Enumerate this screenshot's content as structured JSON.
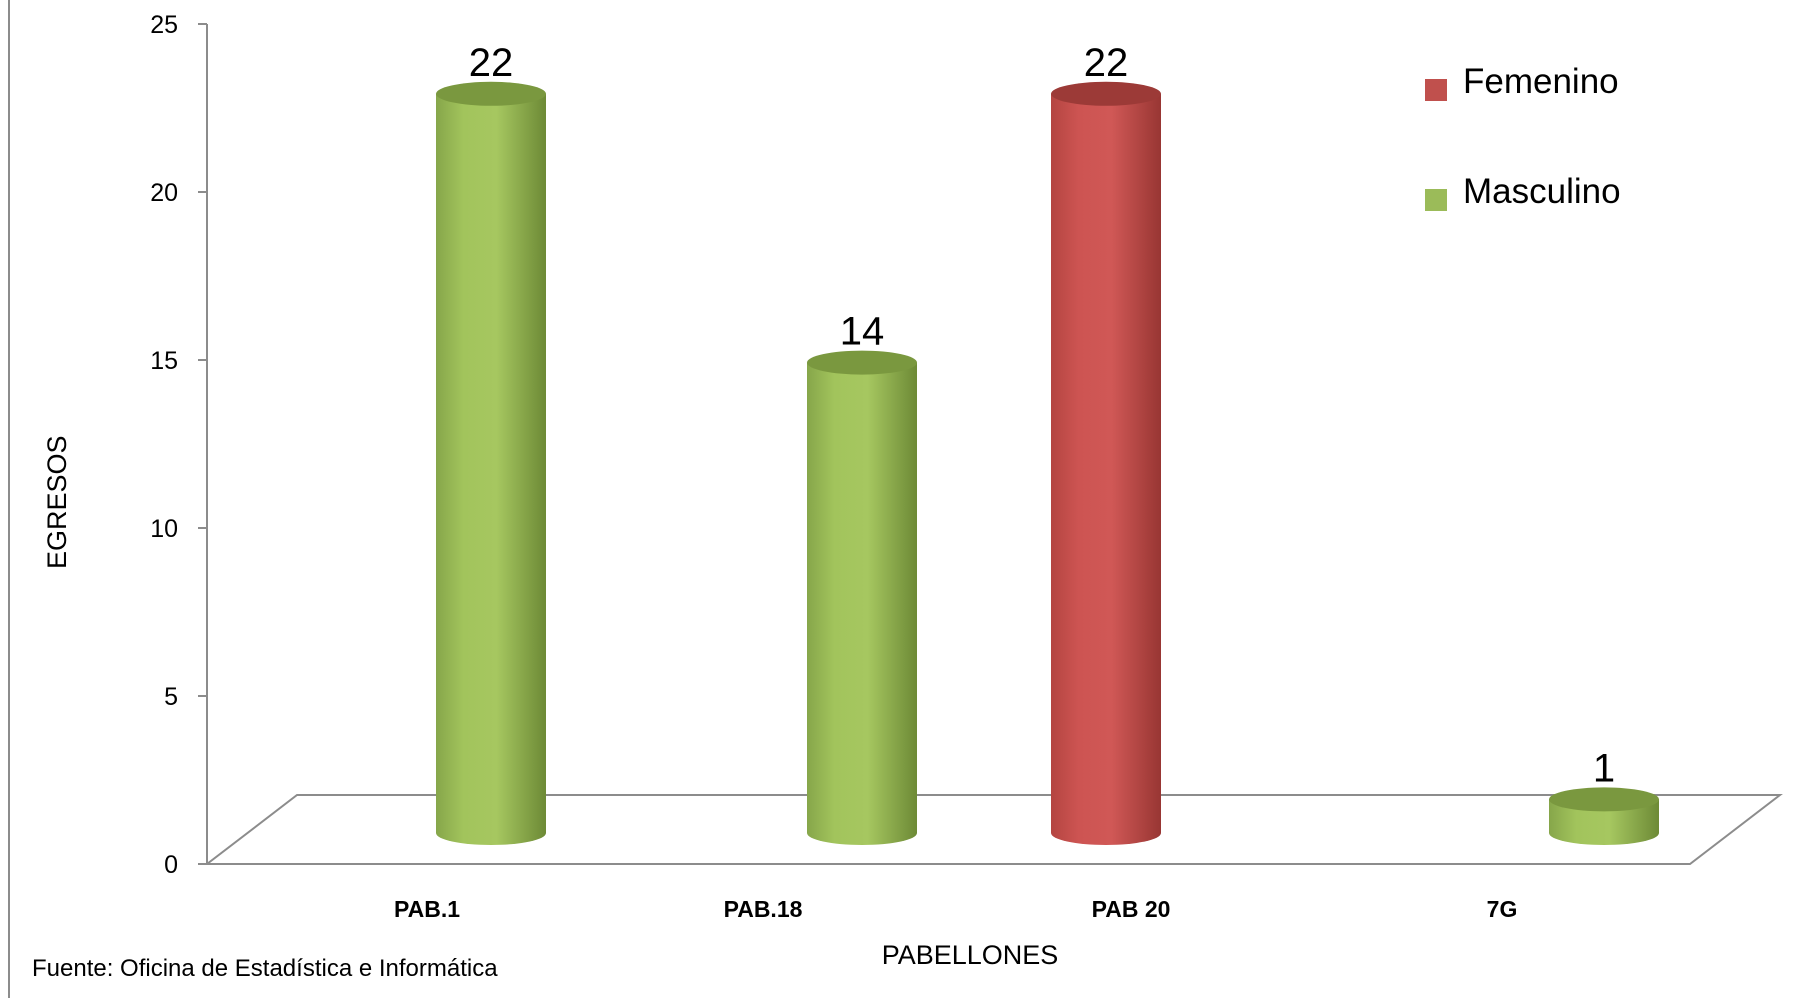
{
  "chart_data": {
    "type": "bar",
    "style": "3d-cylinder",
    "categories": [
      "PAB.1",
      "PAB.18",
      "PAB 20",
      "7G"
    ],
    "series": [
      {
        "name": "Femenino",
        "color": "#c0504d",
        "values": [
          null,
          null,
          22,
          null
        ]
      },
      {
        "name": "Masculino",
        "color": "#9bbb59",
        "values": [
          22,
          14,
          null,
          1
        ]
      }
    ],
    "data_labels": [
      "22",
      "14",
      "22",
      "1"
    ],
    "xlabel": "PABELLONES",
    "ylabel": "EGRESOS",
    "ylim": [
      0,
      25
    ],
    "yticks": [
      0,
      5,
      10,
      15,
      20,
      25
    ],
    "grid": false,
    "legend_position": "top-right"
  },
  "footnote": "Fuente: Oficina de Estadística e Informática"
}
